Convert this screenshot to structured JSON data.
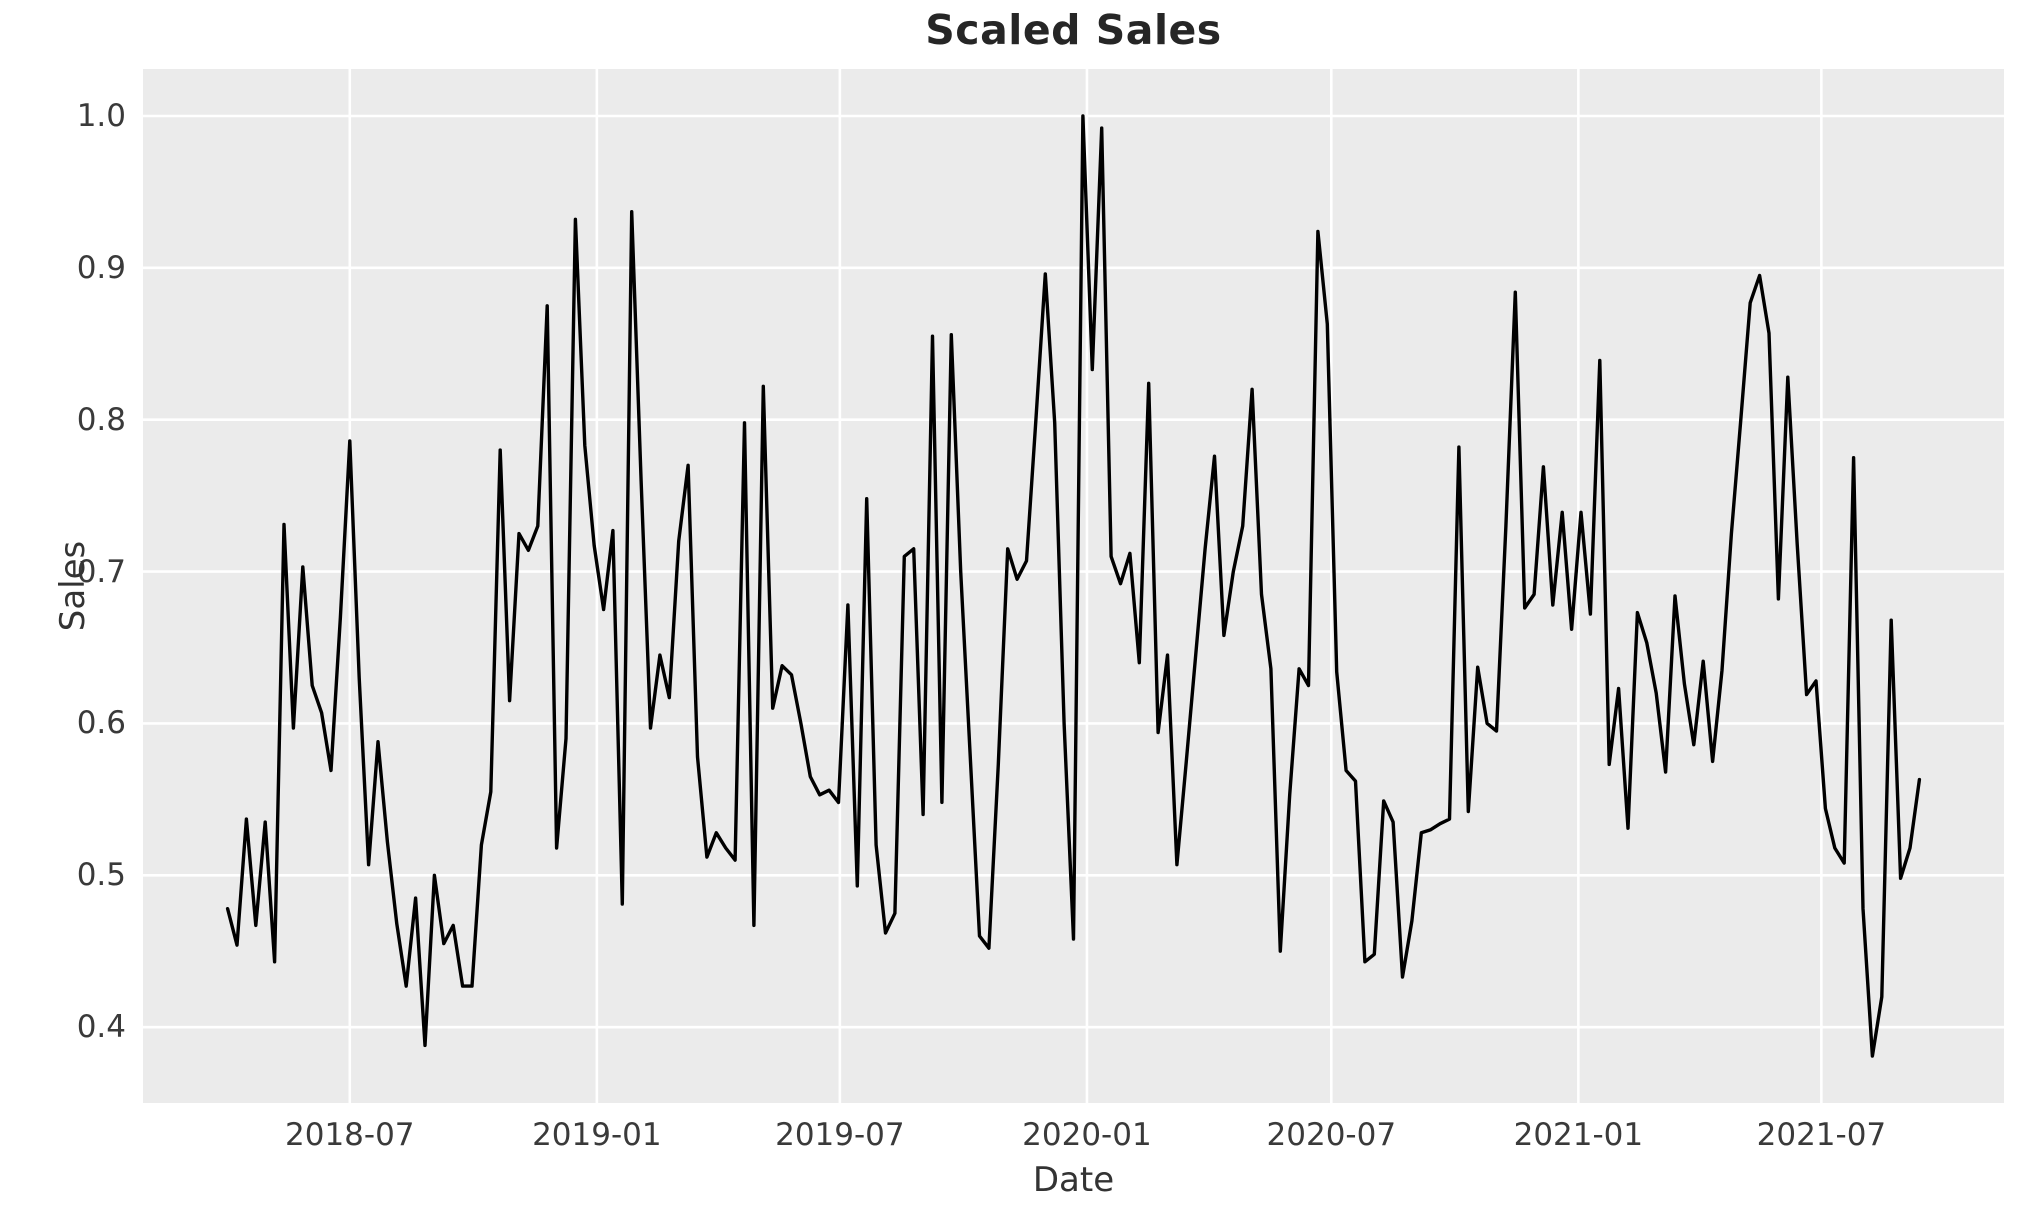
{
  "figure": {
    "title": "Scaled Sales",
    "x_axis_label": "Date",
    "y_axis_label": "Sales"
  },
  "chart_data": {
    "type": "line",
    "title": "Scaled Sales",
    "xlabel": "Date",
    "ylabel": "Sales",
    "legend": "none",
    "grid": "on",
    "panel_background_color": "#EBEBEB",
    "gridline_color": "#FFFFFF",
    "line_color": "#000000",
    "text_color": "#3a3a3a",
    "x_tick_labels": [
      "2018-07",
      "2019-01",
      "2019-07",
      "2020-01",
      "2020-07",
      "2021-01",
      "2021-07"
    ],
    "x_tick_dates": [
      "2018-07-01",
      "2019-01-01",
      "2019-07-01",
      "2020-01-01",
      "2020-07-01",
      "2021-01-01",
      "2021-07-01"
    ],
    "y_tick_labels": [
      "1.0",
      "0.9",
      "0.8",
      "0.7",
      "0.6",
      "0.5",
      "0.4"
    ],
    "y_tick_values": [
      1.0,
      0.9,
      0.8,
      0.7,
      0.6,
      0.5,
      0.4
    ],
    "axis_padding_fraction": 0.05,
    "series": [
      {
        "name": "Scaled Sales",
        "x_start_date": "2018-04-01",
        "x_frequency_days": 7,
        "y_min_observed": 0.381,
        "y_max_observed": 1.0,
        "values": [
          0.478,
          0.454,
          0.537,
          0.467,
          0.535,
          0.443,
          0.731,
          0.597,
          0.703,
          0.625,
          0.607,
          0.569,
          0.67,
          0.786,
          0.63,
          0.507,
          0.588,
          0.522,
          0.468,
          0.427,
          0.485,
          0.388,
          0.5,
          0.455,
          0.467,
          0.427,
          0.427,
          0.52,
          0.555,
          0.78,
          0.615,
          0.725,
          0.714,
          0.73,
          0.875,
          0.518,
          0.59,
          0.932,
          0.783,
          0.717,
          0.675,
          0.727,
          0.481,
          0.937,
          0.76,
          0.597,
          0.645,
          0.617,
          0.72,
          0.77,
          0.578,
          0.512,
          0.528,
          0.518,
          0.51,
          0.798,
          0.467,
          0.822,
          0.61,
          0.638,
          0.632,
          0.6,
          0.565,
          0.553,
          0.556,
          0.548,
          0.678,
          0.493,
          0.748,
          0.52,
          0.462,
          0.475,
          0.71,
          0.715,
          0.54,
          0.855,
          0.548,
          0.856,
          0.7,
          0.58,
          0.46,
          0.452,
          0.573,
          0.715,
          0.695,
          0.707,
          0.8,
          0.896,
          0.798,
          0.6,
          0.458,
          1.0,
          0.833,
          0.992,
          0.71,
          0.692,
          0.712,
          0.64,
          0.824,
          0.594,
          0.645,
          0.507,
          0.575,
          0.645,
          0.715,
          0.776,
          0.658,
          0.7,
          0.73,
          0.82,
          0.685,
          0.636,
          0.45,
          0.553,
          0.636,
          0.625,
          0.924,
          0.863,
          0.634,
          0.569,
          0.562,
          0.443,
          0.448,
          0.549,
          0.535,
          0.433,
          0.47,
          0.528,
          0.53,
          0.534,
          0.537,
          0.782,
          0.542,
          0.637,
          0.6,
          0.595,
          0.73,
          0.884,
          0.676,
          0.685,
          0.769,
          0.678,
          0.739,
          0.662,
          0.739,
          0.672,
          0.839,
          0.573,
          0.623,
          0.531,
          0.673,
          0.653,
          0.62,
          0.568,
          0.684,
          0.626,
          0.586,
          0.641,
          0.575,
          0.635,
          0.725,
          0.8,
          0.877,
          0.895,
          0.857,
          0.682,
          0.828,
          0.718,
          0.619,
          0.628,
          0.544,
          0.518,
          0.508,
          0.775,
          0.478,
          0.381,
          0.42,
          0.668,
          0.498,
          0.518,
          0.563
        ]
      }
    ]
  }
}
